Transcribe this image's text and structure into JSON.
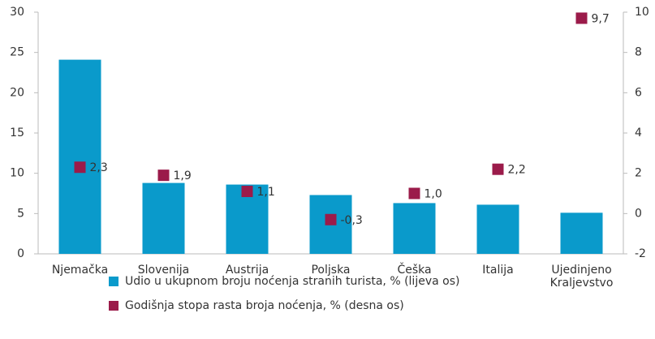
{
  "chart_data": {
    "type": "bar",
    "categories": [
      "Njemačka",
      "Slovenija",
      "Austrija",
      "Poljska",
      "Češka",
      "Italija",
      "Ujedinjeno Kraljevstvo"
    ],
    "series": [
      {
        "name": "Udio u ukupnom broju noćenja stranih turista, % (lijeva os)",
        "type": "bar",
        "color": "#0a9acb",
        "values": [
          24.1,
          8.8,
          8.6,
          7.3,
          6.3,
          6.1,
          5.1
        ]
      },
      {
        "name": "Godišnja stopa rasta broja noćenja, % (desna os)",
        "type": "scatter",
        "axis": "y2",
        "color": "#9b1b4a",
        "values": [
          2.3,
          1.9,
          1.1,
          -0.3,
          1.0,
          2.2,
          9.7
        ],
        "value_labels": [
          "2,3",
          "1,9",
          "1,1",
          "-0,3",
          "1,0",
          "2,2",
          "9,7"
        ]
      }
    ],
    "ylim": [
      0,
      30
    ],
    "yticks": [
      0,
      5,
      10,
      15,
      20,
      25,
      30
    ],
    "y2lim": [
      -2,
      10
    ],
    "y2ticks": [
      -2,
      0,
      2,
      4,
      6,
      8,
      10
    ]
  }
}
